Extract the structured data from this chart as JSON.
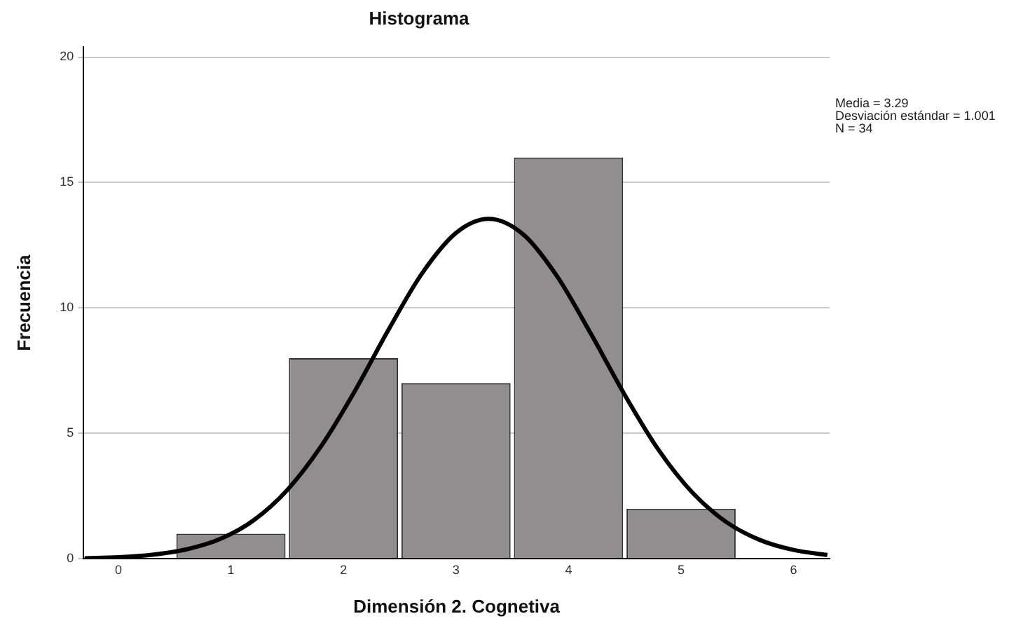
{
  "chart_data": {
    "type": "histogram",
    "title": "Histograma",
    "xlabel": "Dimensión 2. Cognetiva",
    "ylabel": "Frecuencia",
    "bins": [
      0.5,
      1.5,
      2.5,
      3.5,
      4.5,
      5.5
    ],
    "values": [
      1,
      8,
      7,
      16,
      2
    ],
    "color": "#928e8e",
    "series": [
      {
        "type": "line",
        "color": "#000000",
        "x": [
          -0.3,
          0,
          0.3,
          0.6,
          0.9,
          1.2,
          1.5,
          1.8,
          2.1,
          2.4,
          2.7,
          3.0,
          3.29,
          3.6,
          3.9,
          4.2,
          4.5,
          4.8,
          5.1,
          5.4,
          5.7,
          6.0,
          6.3
        ],
        "values": [
          0.02,
          0.06,
          0.16,
          0.37,
          0.78,
          1.53,
          2.74,
          4.48,
          6.68,
          9.13,
          11.39,
          12.99,
          13.55,
          12.92,
          11.25,
          8.96,
          6.53,
          4.34,
          2.64,
          1.47,
          0.75,
          0.35,
          0.15
        ]
      }
    ],
    "xlim": [
      -0.31,
      6.32
    ],
    "xticks": [
      0,
      1,
      2,
      3,
      4,
      5,
      6
    ],
    "ylim": [
      0,
      20.4
    ],
    "yticks": [
      0,
      5,
      10,
      15,
      20
    ],
    "grid": "y",
    "legend": false,
    "marker": "none",
    "annotations": [
      "Media = 3.29",
      "Desviación estándar = 1.001",
      "N = 34"
    ]
  }
}
